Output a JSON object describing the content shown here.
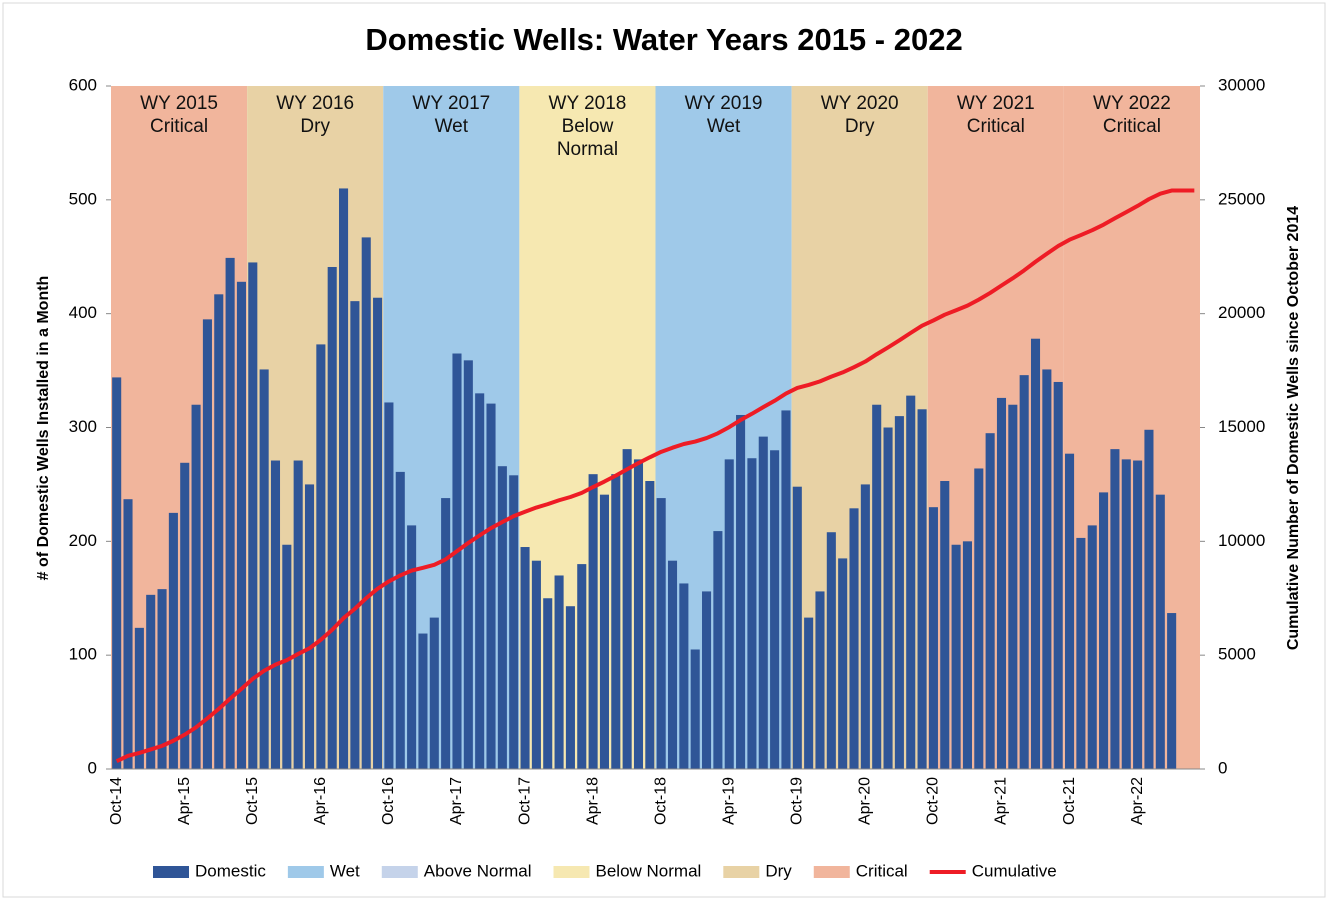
{
  "chart_data": {
    "type": "bar",
    "title": "Domestic Wells: Water Years 2015 - 2022",
    "y_label": "# of Domestic Wells Installed in a Month",
    "y2_label": "Cumulative Number of Domestic Wells since October 2014",
    "categories": [
      "Oct-14",
      null,
      null,
      null,
      null,
      null,
      "Apr-15",
      null,
      null,
      null,
      null,
      null,
      "Oct-15",
      null,
      null,
      null,
      null,
      null,
      "Apr-16",
      null,
      null,
      null,
      null,
      null,
      "Oct-16",
      null,
      null,
      null,
      null,
      null,
      "Apr-17",
      null,
      null,
      null,
      null,
      null,
      "Oct-17",
      null,
      null,
      null,
      null,
      null,
      "Apr-18",
      null,
      null,
      null,
      null,
      null,
      "Oct-18",
      null,
      null,
      null,
      null,
      null,
      "Apr-19",
      null,
      null,
      null,
      null,
      null,
      "Oct-19",
      null,
      null,
      null,
      null,
      null,
      "Apr-20",
      null,
      null,
      null,
      null,
      null,
      "Oct-20",
      null,
      null,
      null,
      null,
      null,
      "Apr-21",
      null,
      null,
      null,
      null,
      null,
      "Oct-21",
      null,
      null,
      null,
      null,
      null,
      "Apr-22",
      null,
      null,
      null,
      null,
      null
    ],
    "series": [
      {
        "name": "Domestic",
        "color": "#2f5597",
        "values": [
          344,
          237,
          124,
          153,
          158,
          225,
          269,
          320,
          395,
          417,
          449,
          428,
          445,
          351,
          271,
          197,
          271,
          250,
          373,
          441,
          510,
          411,
          467,
          414,
          322,
          261,
          214,
          119,
          133,
          238,
          365,
          359,
          330,
          321,
          266,
          258,
          195,
          183,
          150,
          170,
          143,
          180,
          259,
          241,
          259,
          281,
          272,
          253,
          238,
          183,
          163,
          105,
          156,
          209,
          272,
          311,
          273,
          292,
          280,
          315,
          248,
          133,
          156,
          208,
          185,
          229,
          250,
          320,
          300,
          310,
          328,
          316,
          230,
          253,
          197,
          200,
          264,
          295,
          326,
          320,
          346,
          378,
          351,
          340,
          277,
          203,
          214,
          243,
          281,
          272,
          271,
          298,
          241,
          137,
          null,
          null
        ]
      },
      {
        "name": "Cumulative",
        "color": "#ee1c25",
        "axis": "y2",
        "values": [
          344,
          581,
          705,
          858,
          1016,
          1241,
          1510,
          1830,
          2225,
          2642,
          3091,
          3519,
          3964,
          4315,
          4586,
          4783,
          5054,
          5304,
          5677,
          6118,
          6628,
          7039,
          7506,
          7920,
          8242,
          8503,
          8717,
          8836,
          8969,
          9207,
          9572,
          9931,
          10261,
          10582,
          10848,
          11106,
          11301,
          11484,
          11634,
          11804,
          11947,
          12127,
          12386,
          12627,
          12886,
          13167,
          13439,
          13692,
          13930,
          14113,
          14276,
          14381,
          14537,
          14746,
          15018,
          15329,
          15602,
          15894,
          16174,
          16489,
          16737,
          16870,
          17026,
          17234,
          17419,
          17648,
          17898,
          18218,
          18518,
          18828,
          19156,
          19472,
          19702,
          19955,
          20152,
          20352,
          20616,
          20911,
          21237,
          21557,
          21903,
          22281,
          22632,
          22972,
          23249,
          23452,
          23666,
          23909,
          24190,
          24462,
          24733,
          25031,
          25272,
          25409,
          25409,
          25409
        ]
      }
    ],
    "band_types": [
      {
        "name": "Wet",
        "color": "#9fc9e9"
      },
      {
        "name": "Above Normal",
        "color": "#c5d3ea"
      },
      {
        "name": "Below Normal",
        "color": "#f6e8b1"
      },
      {
        "name": "Dry",
        "color": "#e8d2a5"
      },
      {
        "name": "Critical",
        "color": "#f1b59c"
      }
    ],
    "bands": [
      {
        "label": "WY 2015",
        "type": "Critical"
      },
      {
        "label": "WY 2016",
        "type": "Dry"
      },
      {
        "label": "WY 2017",
        "type": "Wet"
      },
      {
        "label": "WY 2018",
        "type": "Below Normal"
      },
      {
        "label": "WY 2019",
        "type": "Wet"
      },
      {
        "label": "WY 2020",
        "type": "Dry"
      },
      {
        "label": "WY 2021",
        "type": "Critical"
      },
      {
        "label": "WY 2022",
        "type": "Critical"
      }
    ],
    "ylim": [
      0,
      600
    ],
    "yticks": [
      0,
      100,
      200,
      300,
      400,
      500,
      600
    ],
    "y2lim": [
      0,
      30000
    ],
    "y2ticks": [
      0,
      5000,
      10000,
      15000,
      20000,
      25000,
      30000
    ],
    "legend": "bottom"
  }
}
